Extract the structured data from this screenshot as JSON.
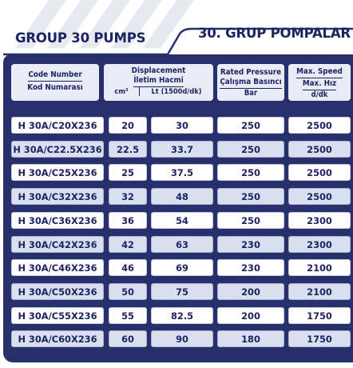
{
  "titles": {
    "left": "GROUP 30 PUMPS",
    "right": "30. GRUP POMPALAR"
  },
  "headers": {
    "code": {
      "en": "Code Number",
      "tr": "Kod Numarası"
    },
    "displacement": {
      "en": "Displacement",
      "tr": "İletim Hacmi",
      "unit1": "cm³",
      "unit2": "Lt (1500d/dk)"
    },
    "pressure": {
      "en": "Rated Pressure",
      "tr": "Çalışma Basıncı",
      "unit": "Bar"
    },
    "speed": {
      "en": "Max. Speed",
      "tr": "Max. Hız",
      "unit": "d/dk"
    }
  },
  "rows": [
    {
      "code": "H 30A/C20X236",
      "cm3": "20",
      "lt": "30",
      "bar": "250",
      "speed": "2500"
    },
    {
      "code": "H 30A/C22.5X236",
      "cm3": "22.5",
      "lt": "33.7",
      "bar": "250",
      "speed": "2500"
    },
    {
      "code": "H 30A/C25X236",
      "cm3": "25",
      "lt": "37.5",
      "bar": "250",
      "speed": "2500"
    },
    {
      "code": "H 30A/C32X236",
      "cm3": "32",
      "lt": "48",
      "bar": "250",
      "speed": "2500"
    },
    {
      "code": "H 30A/C36X236",
      "cm3": "36",
      "lt": "54",
      "bar": "250",
      "speed": "2300"
    },
    {
      "code": "H 30A/C42X236",
      "cm3": "42",
      "lt": "63",
      "bar": "230",
      "speed": "2300"
    },
    {
      "code": "H 30A/C46X236",
      "cm3": "46",
      "lt": "69",
      "bar": "230",
      "speed": "2100"
    },
    {
      "code": "H 30A/C50X236",
      "cm3": "50",
      "lt": "75",
      "bar": "200",
      "speed": "2100"
    },
    {
      "code": "H 30A/C55X236",
      "cm3": "55",
      "lt": "82.5",
      "bar": "200",
      "speed": "1750"
    },
    {
      "code": "H 30A/C60X236",
      "cm3": "60",
      "lt": "90",
      "bar": "180",
      "speed": "1750"
    }
  ]
}
